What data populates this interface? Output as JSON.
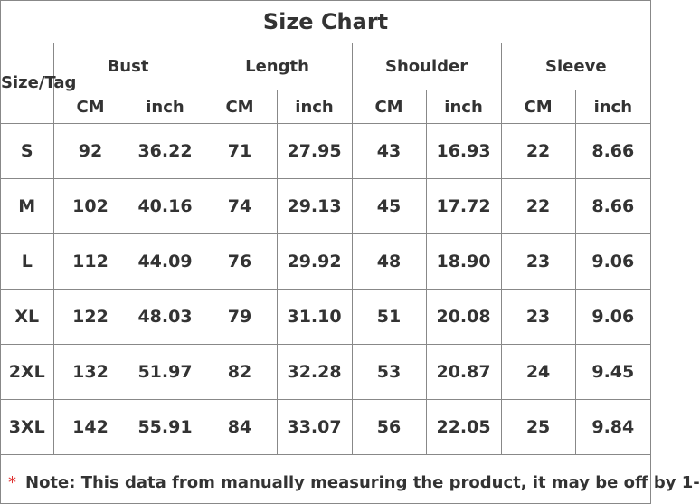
{
  "title": "Size Chart",
  "size_header": "Size/Tag",
  "groups": [
    "Bust",
    "Length",
    "Shoulder",
    "Sleeve"
  ],
  "units": [
    "CM",
    "inch"
  ],
  "rows": [
    {
      "size": "S",
      "values": [
        "92",
        "36.22",
        "71",
        "27.95",
        "43",
        "16.93",
        "22",
        "8.66"
      ]
    },
    {
      "size": "M",
      "values": [
        "102",
        "40.16",
        "74",
        "29.13",
        "45",
        "17.72",
        "22",
        "8.66"
      ]
    },
    {
      "size": "L",
      "values": [
        "112",
        "44.09",
        "76",
        "29.92",
        "48",
        "18.90",
        "23",
        "9.06"
      ]
    },
    {
      "size": "XL",
      "values": [
        "122",
        "48.03",
        "79",
        "31.10",
        "51",
        "20.08",
        "23",
        "9.06"
      ]
    },
    {
      "size": "2XL",
      "values": [
        "132",
        "51.97",
        "82",
        "32.28",
        "53",
        "20.87",
        "24",
        "9.45"
      ]
    },
    {
      "size": "3XL",
      "values": [
        "142",
        "55.91",
        "84",
        "33.07",
        "56",
        "22.05",
        "25",
        "9.84"
      ]
    }
  ],
  "note": {
    "marker": "*",
    "text": "Note: This data from manually measuring the product, it may be off by 1-"
  },
  "colors": {
    "text": "#333333",
    "border": "#888888",
    "marker": "#e03030"
  }
}
